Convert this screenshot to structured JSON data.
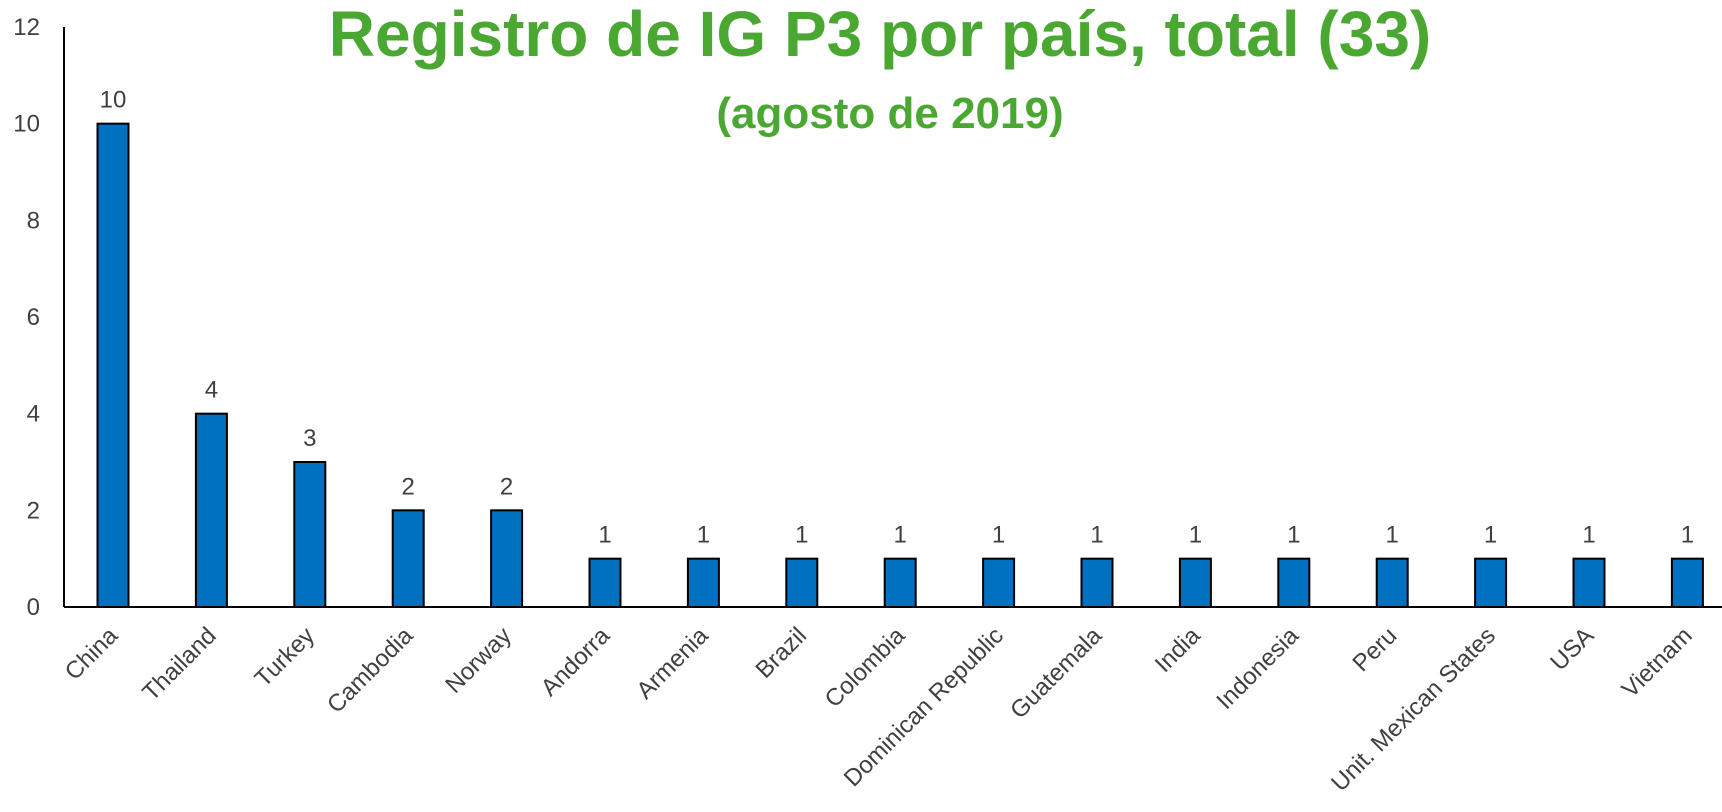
{
  "chart_data": {
    "type": "bar",
    "title": "Registro de IG P3 por país, total (33)",
    "subtitle": "(agosto de 2019)",
    "categories": [
      "China",
      "Thailand",
      "Turkey",
      "Cambodia",
      "Norway",
      "Andorra",
      "Armenia",
      "Brazil",
      "Colombia",
      "Dominican Republic",
      "Guatemala",
      "India",
      "Indonesia",
      "Peru",
      "Unit. Mexican States",
      "USA",
      "Vietnam"
    ],
    "values": [
      10,
      4,
      3,
      2,
      2,
      1,
      1,
      1,
      1,
      1,
      1,
      1,
      1,
      1,
      1,
      1,
      1
    ],
    "color": "#0070c0",
    "ylim": [
      0,
      12
    ],
    "yticks": [
      0,
      2,
      4,
      6,
      8,
      10,
      12
    ],
    "grid": false
  }
}
